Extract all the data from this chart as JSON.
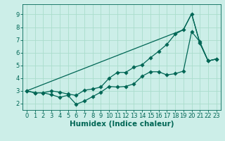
{
  "title": "",
  "xlabel": "Humidex (Indice chaleur)",
  "bg_color": "#cceee8",
  "grid_color": "#aaddcc",
  "line_color": "#006655",
  "xlim": [
    -0.5,
    23.5
  ],
  "ylim": [
    1.5,
    9.8
  ],
  "xticks": [
    0,
    1,
    2,
    3,
    4,
    5,
    6,
    7,
    8,
    9,
    10,
    11,
    12,
    13,
    14,
    15,
    16,
    17,
    18,
    19,
    20,
    21,
    22,
    23
  ],
  "yticks": [
    2,
    3,
    4,
    5,
    6,
    7,
    8,
    9
  ],
  "line1_x": [
    0,
    1,
    2,
    3,
    4,
    5,
    6,
    7,
    8,
    9,
    10,
    11,
    12,
    13,
    14,
    15,
    16,
    17,
    18,
    19,
    20,
    21,
    22,
    23
  ],
  "line1_y": [
    3.0,
    2.85,
    2.85,
    2.7,
    2.5,
    2.65,
    1.95,
    2.2,
    2.55,
    2.9,
    3.35,
    3.3,
    3.35,
    3.55,
    4.15,
    4.5,
    4.5,
    4.25,
    4.35,
    4.55,
    7.65,
    6.85,
    5.35,
    5.5
  ],
  "line2_x": [
    0,
    1,
    2,
    3,
    4,
    5,
    6,
    7,
    8,
    9,
    10,
    11,
    12,
    13,
    14,
    15,
    16,
    17,
    18,
    19,
    20,
    21,
    22,
    23
  ],
  "line2_y": [
    3.0,
    2.85,
    2.85,
    3.0,
    2.9,
    2.75,
    2.65,
    3.05,
    3.15,
    3.3,
    4.0,
    4.45,
    4.45,
    4.85,
    5.05,
    5.6,
    6.1,
    6.65,
    7.45,
    7.8,
    9.05,
    6.75,
    5.35,
    5.5
  ],
  "line3_x": [
    0,
    19,
    20,
    21,
    22,
    23
  ],
  "line3_y": [
    3.0,
    7.8,
    9.05,
    6.75,
    5.35,
    5.5
  ]
}
